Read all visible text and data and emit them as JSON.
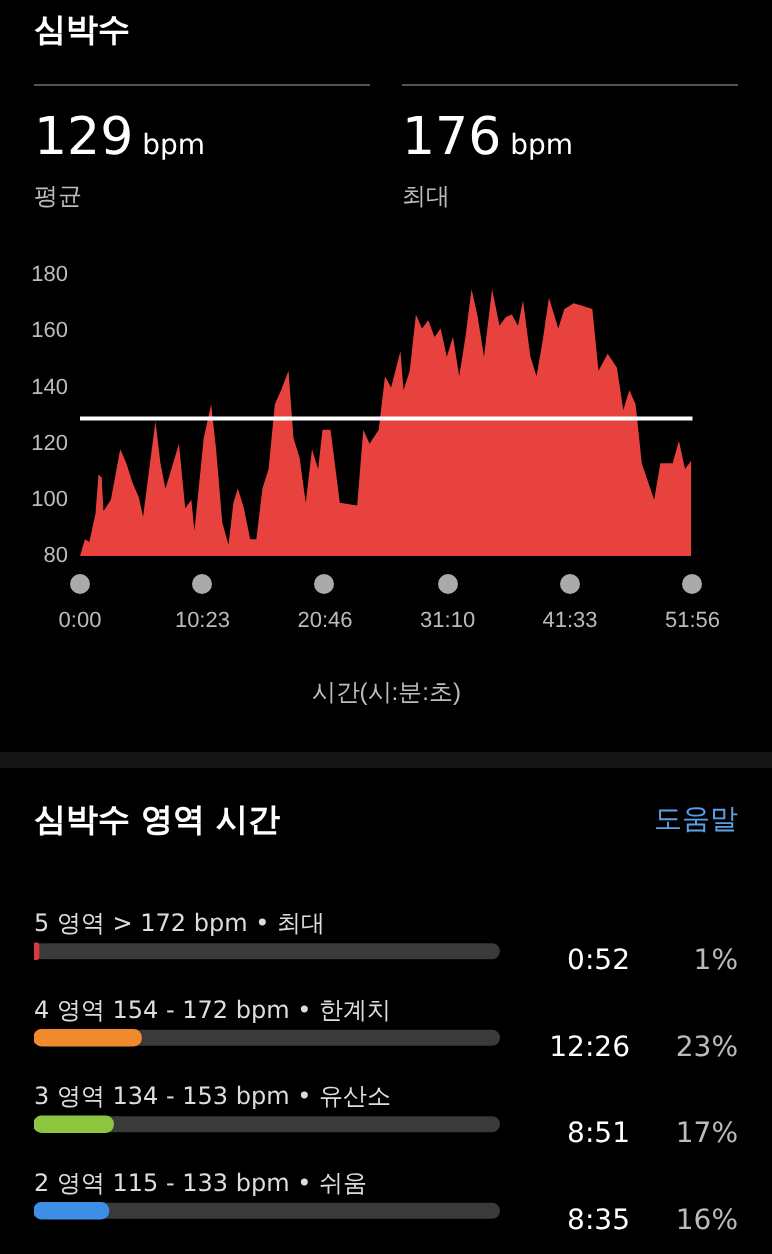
{
  "chart_data": [
    {
      "type": "area",
      "title": "심박수",
      "annotations": [
        "129 bpm",
        "평균",
        "176 bpm",
        "최대"
      ],
      "xlabel": "시간(시:분:초)",
      "color": "#e8423f",
      "x": [
        0,
        0.42,
        0.79,
        1.31,
        1.57,
        1.84,
        1.99,
        2.62,
        3.41,
        3.93,
        4.46,
        4.98,
        5.35,
        5.87,
        6.4,
        6.82,
        7.24,
        7.61,
        8.39,
        8.92,
        9.44,
        9.7,
        10.23,
        10.49,
        11.12,
        11.54,
        12.06,
        12.59,
        13.01,
        13.38,
        13.9,
        14.43,
        14.95,
        15.47,
        15.99,
        16.52,
        17.05,
        17.68,
        18.1,
        18.62,
        19.14,
        19.67,
        20.19,
        20.56,
        21.24,
        22.03,
        23.5,
        24.02,
        24.55,
        25.33,
        25.86,
        26.38,
        27.17,
        27.43,
        27.96,
        28.48,
        29.0,
        29.53,
        30.06,
        30.58,
        31.1,
        31.63,
        32.15,
        32.68,
        33.2,
        33.73,
        34.25,
        34.94,
        35.57,
        36.09,
        36.61,
        37.14,
        37.56,
        38.19,
        38.71,
        39.24,
        39.76,
        40.55,
        41.07,
        41.86,
        42.65,
        43.44,
        43.96,
        44.74,
        45.53,
        46.06,
        46.58,
        47.11,
        47.63,
        48.68,
        49.21,
        50.25,
        50.78,
        51.3,
        51.83
      ],
      "values": [
        80,
        86,
        85,
        95,
        109,
        108,
        96,
        100,
        118,
        113,
        106,
        101,
        94,
        111,
        128,
        113,
        104,
        109,
        120,
        97,
        100,
        89,
        111,
        122,
        134,
        118,
        92,
        84,
        99,
        104,
        97,
        86,
        86,
        104,
        111,
        134,
        139,
        146,
        122,
        115,
        99,
        118,
        111,
        125,
        125,
        99,
        98,
        125,
        120,
        125,
        144,
        140,
        153,
        139,
        146,
        166,
        161,
        164,
        158,
        161,
        151,
        158,
        144,
        158,
        175,
        165,
        151,
        175,
        162,
        165,
        166,
        162,
        171,
        151,
        144,
        157,
        172,
        161,
        168,
        170,
        169,
        168,
        146,
        152,
        147,
        132,
        139,
        134,
        113,
        100,
        113,
        113,
        121,
        111,
        114
      ],
      "xlim": [
        0,
        51.93
      ],
      "xticks": [
        {
          "value": 0,
          "label": "0:00"
        },
        {
          "value": 10.38,
          "label": "10:23"
        },
        {
          "value": 20.77,
          "label": "20:46"
        },
        {
          "value": 31.17,
          "label": "31:10"
        },
        {
          "value": 41.55,
          "label": "41:33"
        },
        {
          "value": 51.93,
          "label": "51:56"
        }
      ],
      "ylim": [
        80,
        180
      ],
      "yticks": [
        80,
        100,
        120,
        140,
        160,
        180
      ],
      "ref_lines": [
        {
          "axis": "y",
          "value": 129,
          "color": "#ffffff"
        }
      ],
      "legend": false
    },
    {
      "type": "bar",
      "orientation": "horizontal",
      "title": "심박수 영역 시간",
      "annotations": [
        "도움말",
        "0:52",
        "12:26",
        "8:51",
        "8:35"
      ],
      "categories": [
        "5 영역 > 172 bpm • 최대",
        "4 영역 154 - 172 bpm • 한계치",
        "3 영역 134 - 153 bpm • 유산소",
        "2 영역 115 - 133 bpm • 쉬움"
      ],
      "values": [
        1,
        23,
        17,
        16
      ],
      "colors": [
        "#d63a3a",
        "#f08a2c",
        "#8cc63f",
        "#3d8fe6"
      ],
      "value_labels": [
        "1%",
        "23%",
        "17%",
        "16%"
      ],
      "xlim": [
        0,
        100
      ],
      "tick_labels": false,
      "legend": false
    }
  ]
}
